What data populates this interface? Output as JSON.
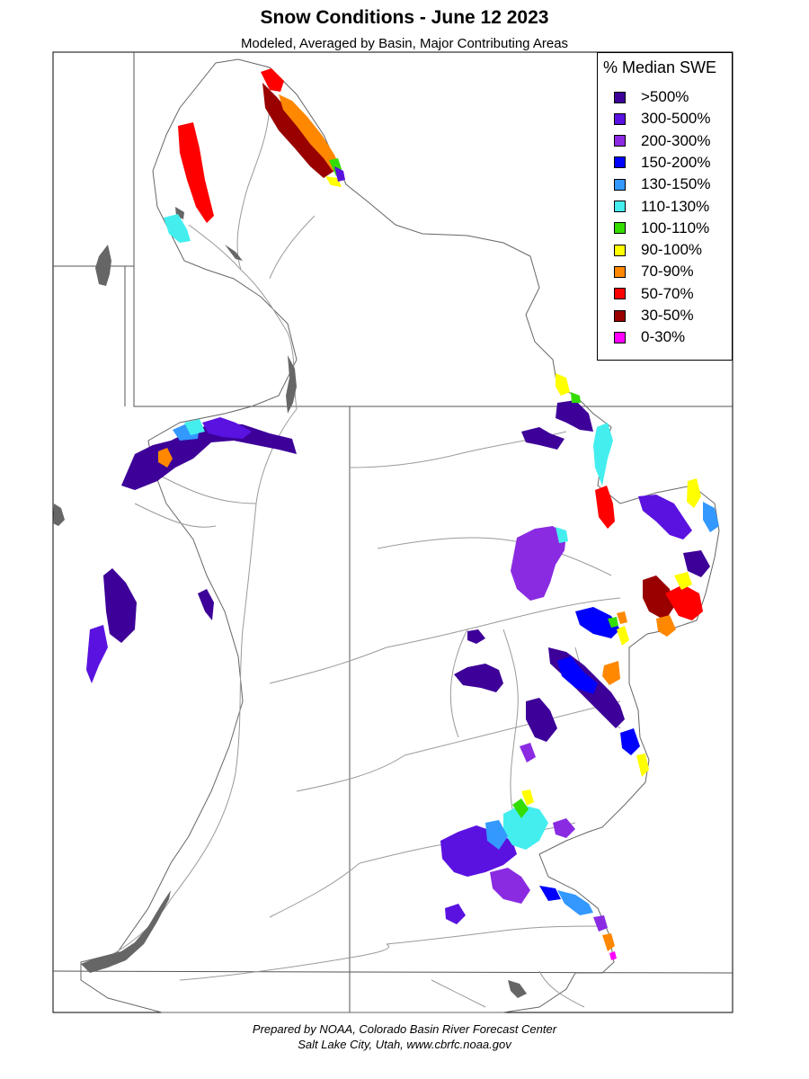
{
  "title": "Snow Conditions - June 12 2023",
  "subtitle": "Modeled, Averaged by Basin, Major Contributing Areas",
  "legend": {
    "title": "% Median SWE",
    "items": [
      {
        "label": ">500%",
        "color": "#3d0099"
      },
      {
        "label": "300-500%",
        "color": "#5a12e0"
      },
      {
        "label": "200-300%",
        "color": "#8a2be2"
      },
      {
        "label": "150-200%",
        "color": "#0000ff"
      },
      {
        "label": "130-150%",
        "color": "#3399ff"
      },
      {
        "label": "110-130%",
        "color": "#44eeee"
      },
      {
        "label": "100-110%",
        "color": "#33dd00"
      },
      {
        "label": "90-100%",
        "color": "#ffff00"
      },
      {
        "label": "70-90%",
        "color": "#ff8800"
      },
      {
        "label": "50-70%",
        "color": "#ff0000"
      },
      {
        "label": "30-50%",
        "color": "#990000"
      },
      {
        "label": "0-30%",
        "color": "#ff00ff"
      }
    ]
  },
  "footer": {
    "line1": "Prepared by NOAA, Colorado Basin River Forecast Center",
    "line2": "Salt Lake City, Utah, www.cbrfc.noaa.gov"
  }
}
